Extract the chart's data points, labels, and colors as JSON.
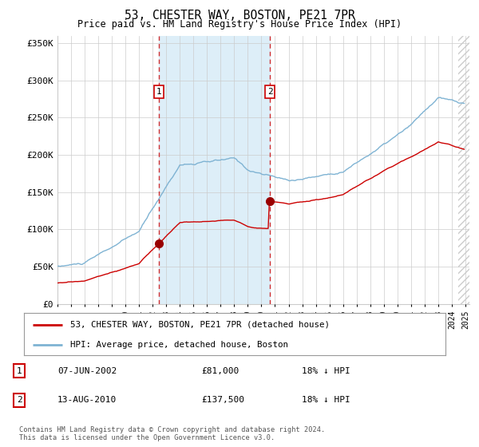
{
  "title": "53, CHESTER WAY, BOSTON, PE21 7PR",
  "subtitle": "Price paid vs. HM Land Registry's House Price Index (HPI)",
  "background_color": "#ffffff",
  "plot_background": "#ffffff",
  "ylabel_ticks": [
    "£0",
    "£50K",
    "£100K",
    "£150K",
    "£200K",
    "£250K",
    "£300K",
    "£350K"
  ],
  "ytick_values": [
    0,
    50000,
    100000,
    150000,
    200000,
    250000,
    300000,
    350000
  ],
  "ylim": [
    0,
    360000
  ],
  "xlim_start": 1995.0,
  "xlim_end": 2025.3,
  "purchase1_date": 2002.44,
  "purchase1_price": 81000,
  "purchase2_date": 2010.62,
  "purchase2_price": 137500,
  "legend_entry1": "53, CHESTER WAY, BOSTON, PE21 7PR (detached house)",
  "legend_entry2": "HPI: Average price, detached house, Boston",
  "table_row1": [
    "1",
    "07-JUN-2002",
    "£81,000",
    "18% ↓ HPI"
  ],
  "table_row2": [
    "2",
    "13-AUG-2010",
    "£137,500",
    "18% ↓ HPI"
  ],
  "footer": "Contains HM Land Registry data © Crown copyright and database right 2024.\nThis data is licensed under the Open Government Licence v3.0.",
  "line_color_property": "#cc0000",
  "line_color_hpi": "#7fb3d3",
  "dashed_line_color": "#cc0000",
  "marker_color": "#990000",
  "shade_between_color": "#ddeef8",
  "grid_color": "#cccccc"
}
